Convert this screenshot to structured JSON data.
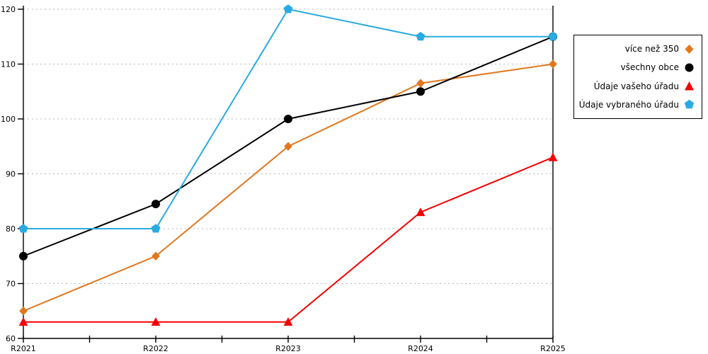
{
  "chart_data": {
    "type": "line",
    "categories": [
      "R2021",
      "R2022",
      "R2023",
      "R2024",
      "R2025"
    ],
    "series": [
      {
        "name": "více než 350",
        "marker": "diamond",
        "color": "#e0771e",
        "values": [
          65,
          75,
          95,
          106.5,
          110
        ]
      },
      {
        "name": "všechny obce",
        "marker": "circle",
        "color": "#000000",
        "values": [
          75,
          84.5,
          100,
          105,
          115
        ]
      },
      {
        "name": "Údaje vašeho úřadu",
        "marker": "triangle",
        "color": "#f50000",
        "values": [
          63,
          63,
          63,
          83,
          93
        ]
      },
      {
        "name": "Údaje vybraného úřadu",
        "marker": "pentagon",
        "color": "#29abe2",
        "values": [
          80,
          80,
          120,
          115,
          115
        ]
      }
    ],
    "ylim": [
      60,
      120
    ],
    "ytick_step": 10,
    "yticks": [
      60,
      70,
      80,
      90,
      100,
      110,
      120
    ],
    "xlabel": "",
    "ylabel": "",
    "title": "",
    "grid": "horizontal-dotted",
    "legend_position": "outside-right",
    "x_minor_ticks_every": 0.5
  },
  "colors": {
    "axis": "#000000",
    "grid": "#b8b8b8",
    "background": "#ffffff"
  }
}
